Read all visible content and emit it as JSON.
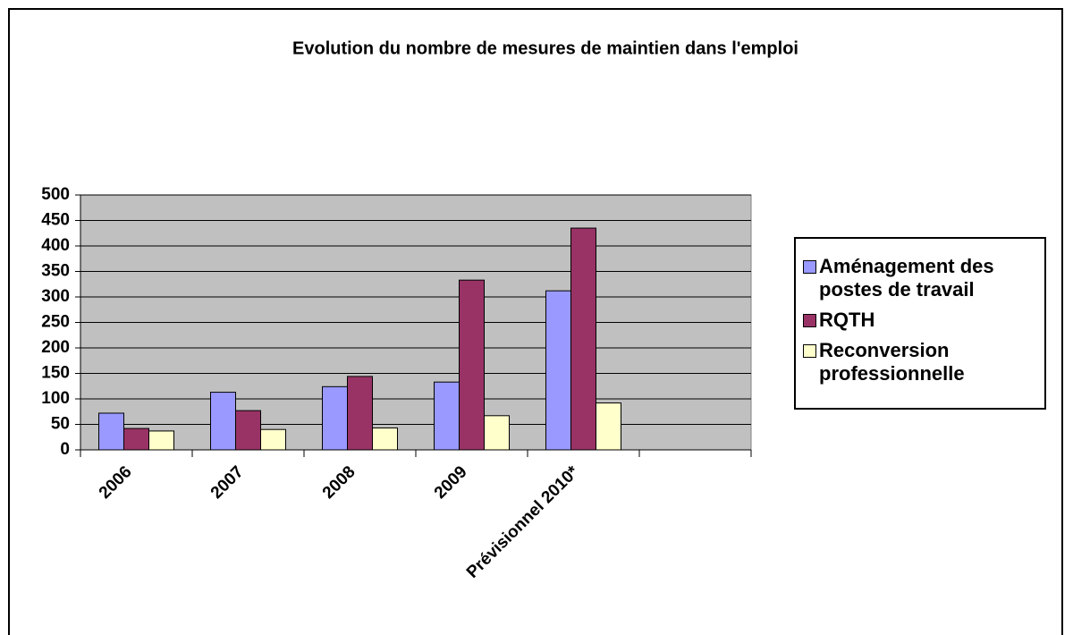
{
  "chart_data": {
    "type": "bar",
    "title": "Evolution du nombre de mesures de maintien dans l'emploi",
    "categories": [
      "2006",
      "2007",
      "2008",
      "2009",
      "Prévisionnel 2010*",
      null
    ],
    "series": [
      {
        "name": "Aménagement des postes de travail",
        "color": "#9999ff",
        "values": [
          72,
          113,
          124,
          133,
          312,
          null
        ]
      },
      {
        "name": "RQTH",
        "color": "#993366",
        "values": [
          42,
          77,
          144,
          333,
          435,
          null
        ]
      },
      {
        "name": "Reconversion professionnelle",
        "color": "#ffffcc",
        "values": [
          37,
          40,
          43,
          67,
          92,
          null
        ]
      }
    ],
    "ylim": [
      0,
      500
    ],
    "yticks": [
      0,
      50,
      100,
      150,
      200,
      250,
      300,
      350,
      400,
      450,
      500
    ],
    "grid": true,
    "legend": "right"
  }
}
